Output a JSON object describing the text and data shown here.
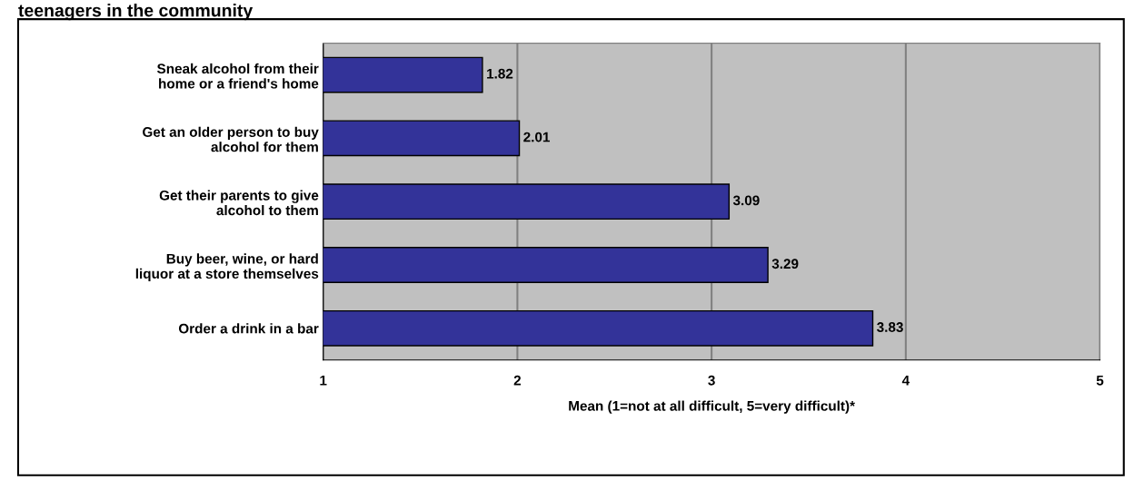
{
  "chart_data": {
    "type": "bar",
    "orientation": "horizontal",
    "title": "teenagers in the community",
    "xlabel": "Mean (1=not at all difficult, 5=very difficult)*",
    "categories": [
      "Sneak alcohol from their\nhome or a friend's home",
      "Get an older person to buy\nalcohol for them",
      "Get their parents to give\nalcohol to them",
      "Buy beer, wine, or hard\nliquor at a store themselves",
      "Order a drink in a bar"
    ],
    "values": [
      1.82,
      2.01,
      3.09,
      3.29,
      3.83
    ],
    "color": "#333399",
    "xlim": [
      1,
      5
    ],
    "xticks": [
      1,
      2,
      3,
      4,
      5
    ],
    "grid": "x",
    "data_labels": true
  }
}
